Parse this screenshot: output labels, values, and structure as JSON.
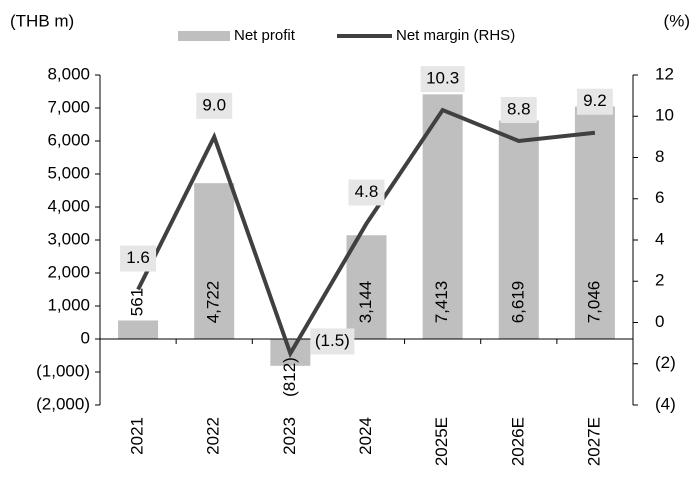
{
  "chart_data": {
    "type": "combo",
    "y_label": "(THB m)",
    "y2_label": "(%)",
    "categories": [
      "2021",
      "2022",
      "2023",
      "2024",
      "2025E",
      "2026E",
      "2027E"
    ],
    "series": [
      {
        "name": "Net profit",
        "type": "bar",
        "color": "#bfbfbf",
        "values": [
          561,
          4722,
          -812,
          3144,
          7413,
          6619,
          7046
        ],
        "value_labels": [
          "561",
          "4,722",
          "(812)",
          "3,144",
          "7,413",
          "6,619",
          "7,046"
        ]
      },
      {
        "name": "Net margin (RHS)",
        "type": "line",
        "axis": "y2",
        "color": "#404040",
        "values": [
          1.6,
          9.0,
          -1.5,
          4.8,
          10.3,
          8.8,
          9.2
        ],
        "value_labels": [
          "1.6",
          "9.0",
          "(1.5)",
          "4.8",
          "10.3",
          "8.8",
          "9.2"
        ]
      }
    ],
    "ylim": [
      -2000,
      8000
    ],
    "yticks": [
      {
        "value": -2000,
        "label": "(2,000)"
      },
      {
        "value": -1000,
        "label": "(1,000)"
      },
      0,
      {
        "value": 1000,
        "label": "1,000"
      },
      {
        "value": 2000,
        "label": "2,000"
      },
      {
        "value": 3000,
        "label": "3,000"
      },
      {
        "value": 4000,
        "label": "4,000"
      },
      {
        "value": 5000,
        "label": "5,000"
      },
      {
        "value": 6000,
        "label": "6,000"
      },
      {
        "value": 7000,
        "label": "7,000"
      },
      {
        "value": 8000,
        "label": "8,000"
      }
    ],
    "y2lim": [
      -4,
      12
    ],
    "y2ticks": [
      {
        "value": -4,
        "label": "(4)"
      },
      {
        "value": -2,
        "label": "(2)"
      },
      0,
      2,
      4,
      6,
      8,
      10,
      12
    ],
    "legend": "top"
  }
}
